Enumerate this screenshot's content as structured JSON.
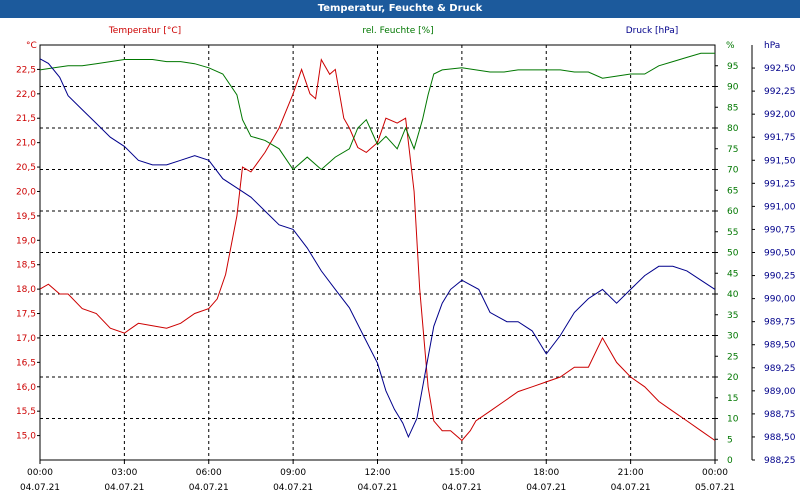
{
  "window": {
    "title": "Temperatur, Feuchte & Druck"
  },
  "colors": {
    "temp": "#cc0000",
    "hum": "#007700",
    "press": "#00008b",
    "title_bg": "#1c5a9c",
    "tick_text": "#000000"
  },
  "chart_data": {
    "type": "line",
    "title": "Temperatur, Feuchte & Druck",
    "xlim": [
      0,
      24
    ],
    "x_ticks": [
      {
        "x": 0,
        "time": "00:00",
        "date": "04.07.21"
      },
      {
        "x": 3,
        "time": "03:00",
        "date": "04.07.21"
      },
      {
        "x": 6,
        "time": "06:00",
        "date": "04.07.21"
      },
      {
        "x": 9,
        "time": "09:00",
        "date": "04.07.21"
      },
      {
        "x": 12,
        "time": "12:00",
        "date": "04.07.21"
      },
      {
        "x": 15,
        "time": "15:00",
        "date": "04.07.21"
      },
      {
        "x": 18,
        "time": "18:00",
        "date": "04.07.21"
      },
      {
        "x": 21,
        "time": "21:00",
        "date": "04.07.21"
      },
      {
        "x": 24,
        "time": "00:00",
        "date": "05.07.21"
      }
    ],
    "axes": {
      "temp": {
        "label": "Temperatur [°C]",
        "unit": "°C",
        "range": [
          14.5,
          23.0
        ],
        "ticks": [
          "15,0",
          "15,5",
          "16,0",
          "16,5",
          "17,0",
          "17,5",
          "18,0",
          "18,5",
          "19,0",
          "19,5",
          "20,0",
          "20,5",
          "21,0",
          "21,5",
          "22,0",
          "22,5"
        ]
      },
      "hum": {
        "label": "rel. Feuchte [%]",
        "unit": "%",
        "range": [
          0,
          100
        ],
        "ticks": [
          "0",
          "5",
          "10",
          "15",
          "20",
          "25",
          "30",
          "35",
          "40",
          "45",
          "50",
          "55",
          "60",
          "65",
          "70",
          "75",
          "80",
          "85",
          "90",
          "95"
        ]
      },
      "press": {
        "label": "Druck [hPa]",
        "unit": "hPa",
        "range": [
          988.25,
          992.75
        ],
        "ticks": [
          "988,25",
          "988,50",
          "988,75",
          "989,00",
          "989,25",
          "989,50",
          "989,75",
          "990,00",
          "990,25",
          "990,50",
          "990,75",
          "991,00",
          "991,25",
          "991,50",
          "991,75",
          "992,00",
          "992,25",
          "992,50"
        ]
      }
    },
    "series": [
      {
        "name": "Temperatur",
        "axis": "temp",
        "x": [
          0,
          0.3,
          0.7,
          1,
          1.5,
          2,
          2.5,
          3,
          3.5,
          4,
          4.5,
          5,
          5.5,
          6,
          6.3,
          6.6,
          7,
          7.2,
          7.5,
          8,
          8.5,
          9,
          9.3,
          9.6,
          9.8,
          10,
          10.3,
          10.5,
          10.8,
          11,
          11.3,
          11.6,
          12,
          12.3,
          12.7,
          13,
          13.3,
          13.5,
          13.8,
          14,
          14.3,
          14.6,
          15,
          15.3,
          15.5,
          16,
          16.5,
          17,
          17.5,
          18,
          18.5,
          19,
          19.5,
          20,
          20.5,
          21,
          21.5,
          22,
          22.5,
          23,
          23.5,
          24
        ],
        "y": [
          18.0,
          18.1,
          17.9,
          17.9,
          17.6,
          17.5,
          17.2,
          17.1,
          17.3,
          17.25,
          17.2,
          17.3,
          17.5,
          17.6,
          17.8,
          18.3,
          19.5,
          20.5,
          20.4,
          20.8,
          21.3,
          22.0,
          22.5,
          22.0,
          21.9,
          22.7,
          22.4,
          22.5,
          21.5,
          21.3,
          20.9,
          20.8,
          21.0,
          21.5,
          21.4,
          21.5,
          20.0,
          18.0,
          16.0,
          15.3,
          15.1,
          15.1,
          14.9,
          15.1,
          15.3,
          15.5,
          15.7,
          15.9,
          16.0,
          16.1,
          16.2,
          16.4,
          16.4,
          17.0,
          16.5,
          16.2,
          16.0,
          15.7,
          15.5,
          15.3,
          15.1,
          14.9
        ]
      },
      {
        "name": "rel. Feuchte",
        "axis": "hum",
        "x": [
          0,
          0.5,
          1,
          1.5,
          2,
          2.5,
          3,
          3.5,
          4,
          4.5,
          5,
          5.5,
          6,
          6.5,
          7,
          7.2,
          7.5,
          8,
          8.5,
          9,
          9.5,
          10,
          10.5,
          11,
          11.3,
          11.6,
          12,
          12.3,
          12.7,
          13,
          13.3,
          13.6,
          13.8,
          14,
          14.3,
          15,
          15.5,
          16,
          16.5,
          17,
          17.5,
          18,
          18.5,
          19,
          19.5,
          20,
          20.5,
          21,
          21.5,
          22,
          22.5,
          23,
          23.5,
          24
        ],
        "y": [
          94,
          94.5,
          95,
          95,
          95.5,
          96,
          96.5,
          96.5,
          96.5,
          96,
          96,
          95.5,
          94.5,
          93,
          88,
          82,
          78,
          77,
          75,
          70,
          73,
          70,
          73,
          75,
          80,
          82,
          76,
          78,
          75,
          80,
          75,
          82,
          88,
          93,
          94,
          94.5,
          94,
          93.5,
          93.5,
          94,
          94,
          94,
          94,
          93.5,
          93.5,
          92,
          92.5,
          93,
          93,
          95,
          96,
          97,
          98,
          98
        ]
      },
      {
        "name": "Druck",
        "axis": "press",
        "x": [
          0,
          0.3,
          0.7,
          1,
          1.5,
          2,
          2.5,
          3,
          3.5,
          4,
          4.5,
          5,
          5.5,
          6,
          6.5,
          7,
          7.5,
          8,
          8.5,
          9,
          9.5,
          10,
          10.5,
          11,
          11.5,
          12,
          12.3,
          12.6,
          12.9,
          13.1,
          13.4,
          13.7,
          14,
          14.3,
          14.6,
          15,
          15.3,
          15.6,
          16,
          16.3,
          16.6,
          17,
          17.5,
          18,
          18.5,
          19,
          19.5,
          20,
          20.5,
          21,
          21.5,
          22,
          22.5,
          23,
          23.5,
          24
        ],
        "y": [
          992.6,
          992.55,
          992.4,
          992.2,
          992.05,
          991.9,
          991.75,
          991.65,
          991.5,
          991.45,
          991.45,
          991.5,
          991.55,
          991.5,
          991.3,
          991.2,
          991.1,
          990.95,
          990.8,
          990.75,
          990.55,
          990.3,
          990.1,
          989.9,
          989.6,
          989.3,
          989.0,
          988.8,
          988.65,
          988.5,
          988.7,
          989.2,
          989.7,
          989.95,
          990.1,
          990.2,
          990.15,
          990.1,
          989.85,
          989.8,
          989.75,
          989.75,
          989.65,
          989.4,
          989.6,
          989.85,
          990.0,
          990.1,
          989.95,
          990.1,
          990.25,
          990.35,
          990.35,
          990.3,
          990.2,
          990.1
        ]
      }
    ]
  }
}
